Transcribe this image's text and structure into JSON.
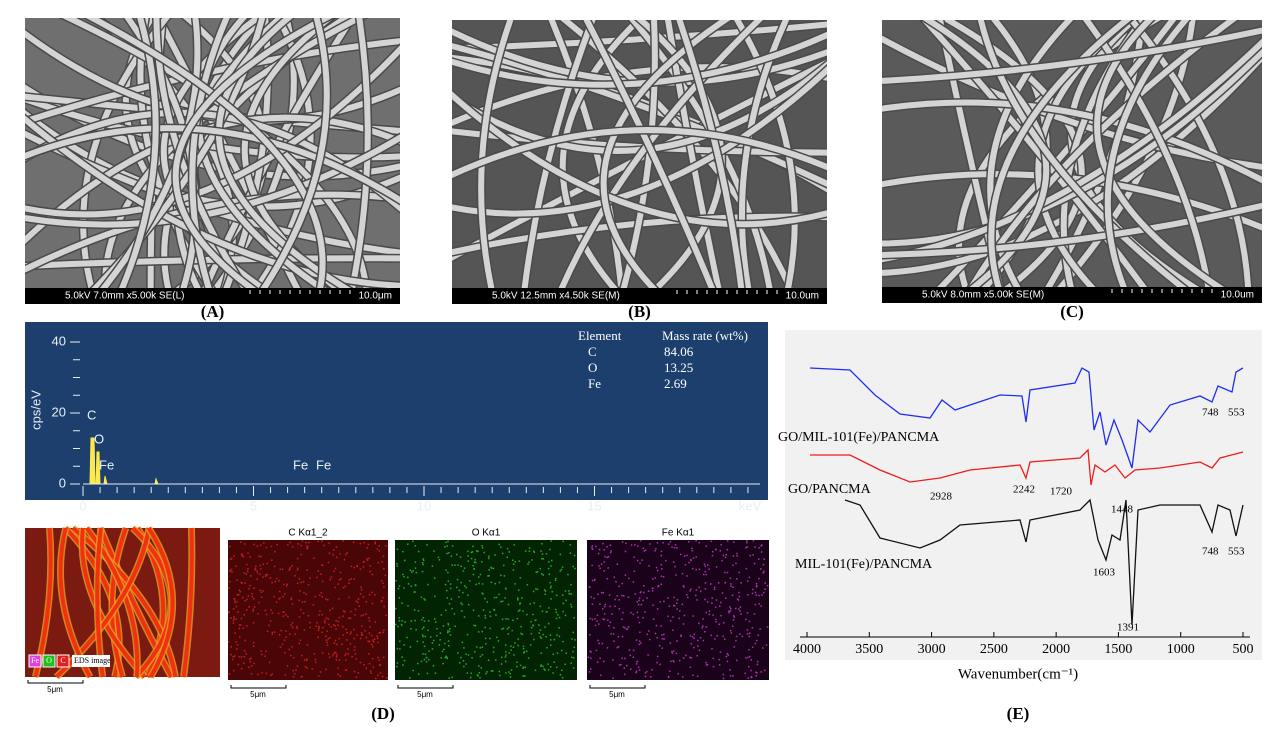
{
  "panels": [
    {
      "label": "(A)",
      "info": "5.0kV 7.0mm x5.00k SE(L)",
      "scale": "10.0μm"
    },
    {
      "label": "(B)",
      "info": "5.0kV 12.5mm x4.50k SE(M)",
      "scale": "10.0um"
    },
    {
      "label": "(C)",
      "info": "5.0kV 8.0mm x5.00k SE(M)",
      "scale": "10.0um"
    }
  ],
  "eds": {
    "y_axis_label": "cps/eV",
    "x_axis_label": "keV",
    "yticks": [
      0,
      20,
      40
    ],
    "xticks": [
      0,
      5,
      10,
      15
    ],
    "peaks": [
      "C",
      "O",
      "Fe",
      "Fe",
      "Fe"
    ],
    "table": {
      "header": [
        "Element",
        "Mass rate (wt%)"
      ],
      "rows": [
        [
          "C",
          "84.06"
        ],
        [
          "O",
          "13.25"
        ],
        [
          "Fe",
          "2.69"
        ]
      ]
    }
  },
  "maps": {
    "legend": [
      "Fe",
      "O",
      "C"
    ],
    "legend_note": "EDS image",
    "titles": [
      "C Kα1_2",
      "O Kα1",
      "Fe Kα1"
    ],
    "scale": "5μm",
    "label": "(D)"
  },
  "ftir": {
    "label": "(E)",
    "x_axis_label": "Wavenumber(cm⁻¹)",
    "xticks": [
      4000,
      3500,
      3000,
      2500,
      2000,
      1500,
      1000,
      500
    ],
    "series": [
      "GO/MIL-101(Fe)/PANCMA",
      "GO/PANCMA",
      "MIL-101(Fe)/PANCMA"
    ],
    "peaks": [
      "748",
      "553",
      "2928",
      "2242",
      "1720",
      "1448",
      "1603",
      "1391",
      "748",
      "553"
    ]
  }
}
